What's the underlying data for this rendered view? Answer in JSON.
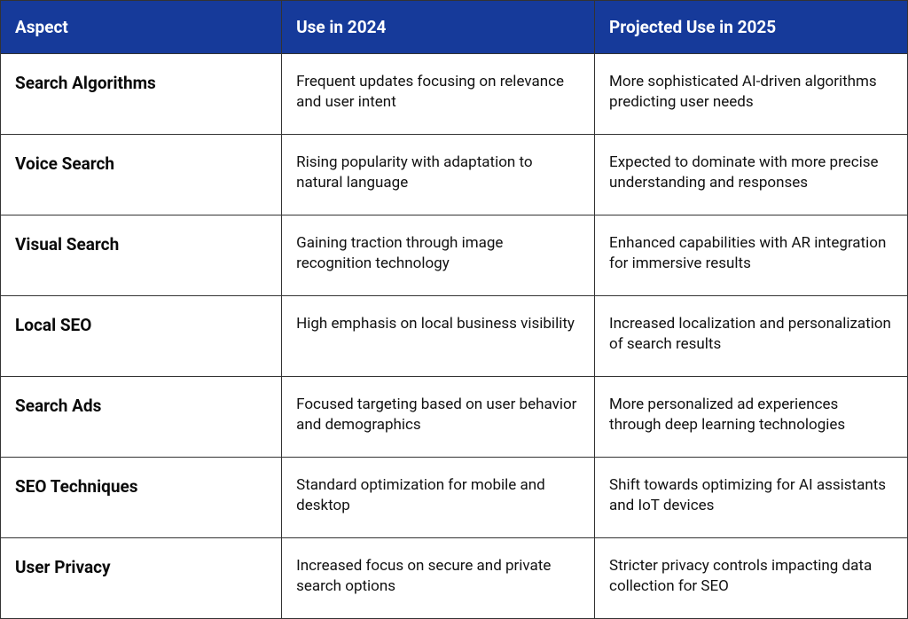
{
  "table": {
    "header_bg": "#163a9a",
    "header_color": "#ffffff",
    "border_color": "#333333",
    "body_bg": "#ffffff",
    "body_text_color": "#111111",
    "aspect_text_color": "#0a0a0a",
    "header_fontsize": 19,
    "aspect_fontsize": 19,
    "cell_fontsize": 17,
    "columns": [
      "Aspect",
      "Use in 2024",
      "Projected Use in 2025"
    ],
    "column_widths_pct": [
      31,
      34.5,
      34.5
    ],
    "rows": [
      {
        "aspect": "Search Algorithms",
        "use2024": "Frequent updates focusing on relevance and user intent",
        "use2025": "More sophisticated AI-driven algorithms predicting user needs"
      },
      {
        "aspect": "Voice Search",
        "use2024": "Rising popularity with adaptation to natural language",
        "use2025": "Expected to dominate with more precise understanding and responses"
      },
      {
        "aspect": "Visual Search",
        "use2024": "Gaining traction through image recognition technology",
        "use2025": "Enhanced capabilities with AR integration for immersive results"
      },
      {
        "aspect": "Local SEO",
        "use2024": "High emphasis on local business visibility",
        "use2025": "Increased localization and personalization of search results"
      },
      {
        "aspect": "Search Ads",
        "use2024": "Focused targeting based on user behavior and demographics",
        "use2025": "More personalized ad experiences through deep learning technologies"
      },
      {
        "aspect": "SEO Techniques",
        "use2024": "Standard optimization for mobile and desktop",
        "use2025": "Shift towards optimizing for AI assistants and IoT devices"
      },
      {
        "aspect": "User Privacy",
        "use2024": "Increased focus on secure and private search options",
        "use2025": "Stricter privacy controls impacting data collection for SEO"
      }
    ]
  }
}
